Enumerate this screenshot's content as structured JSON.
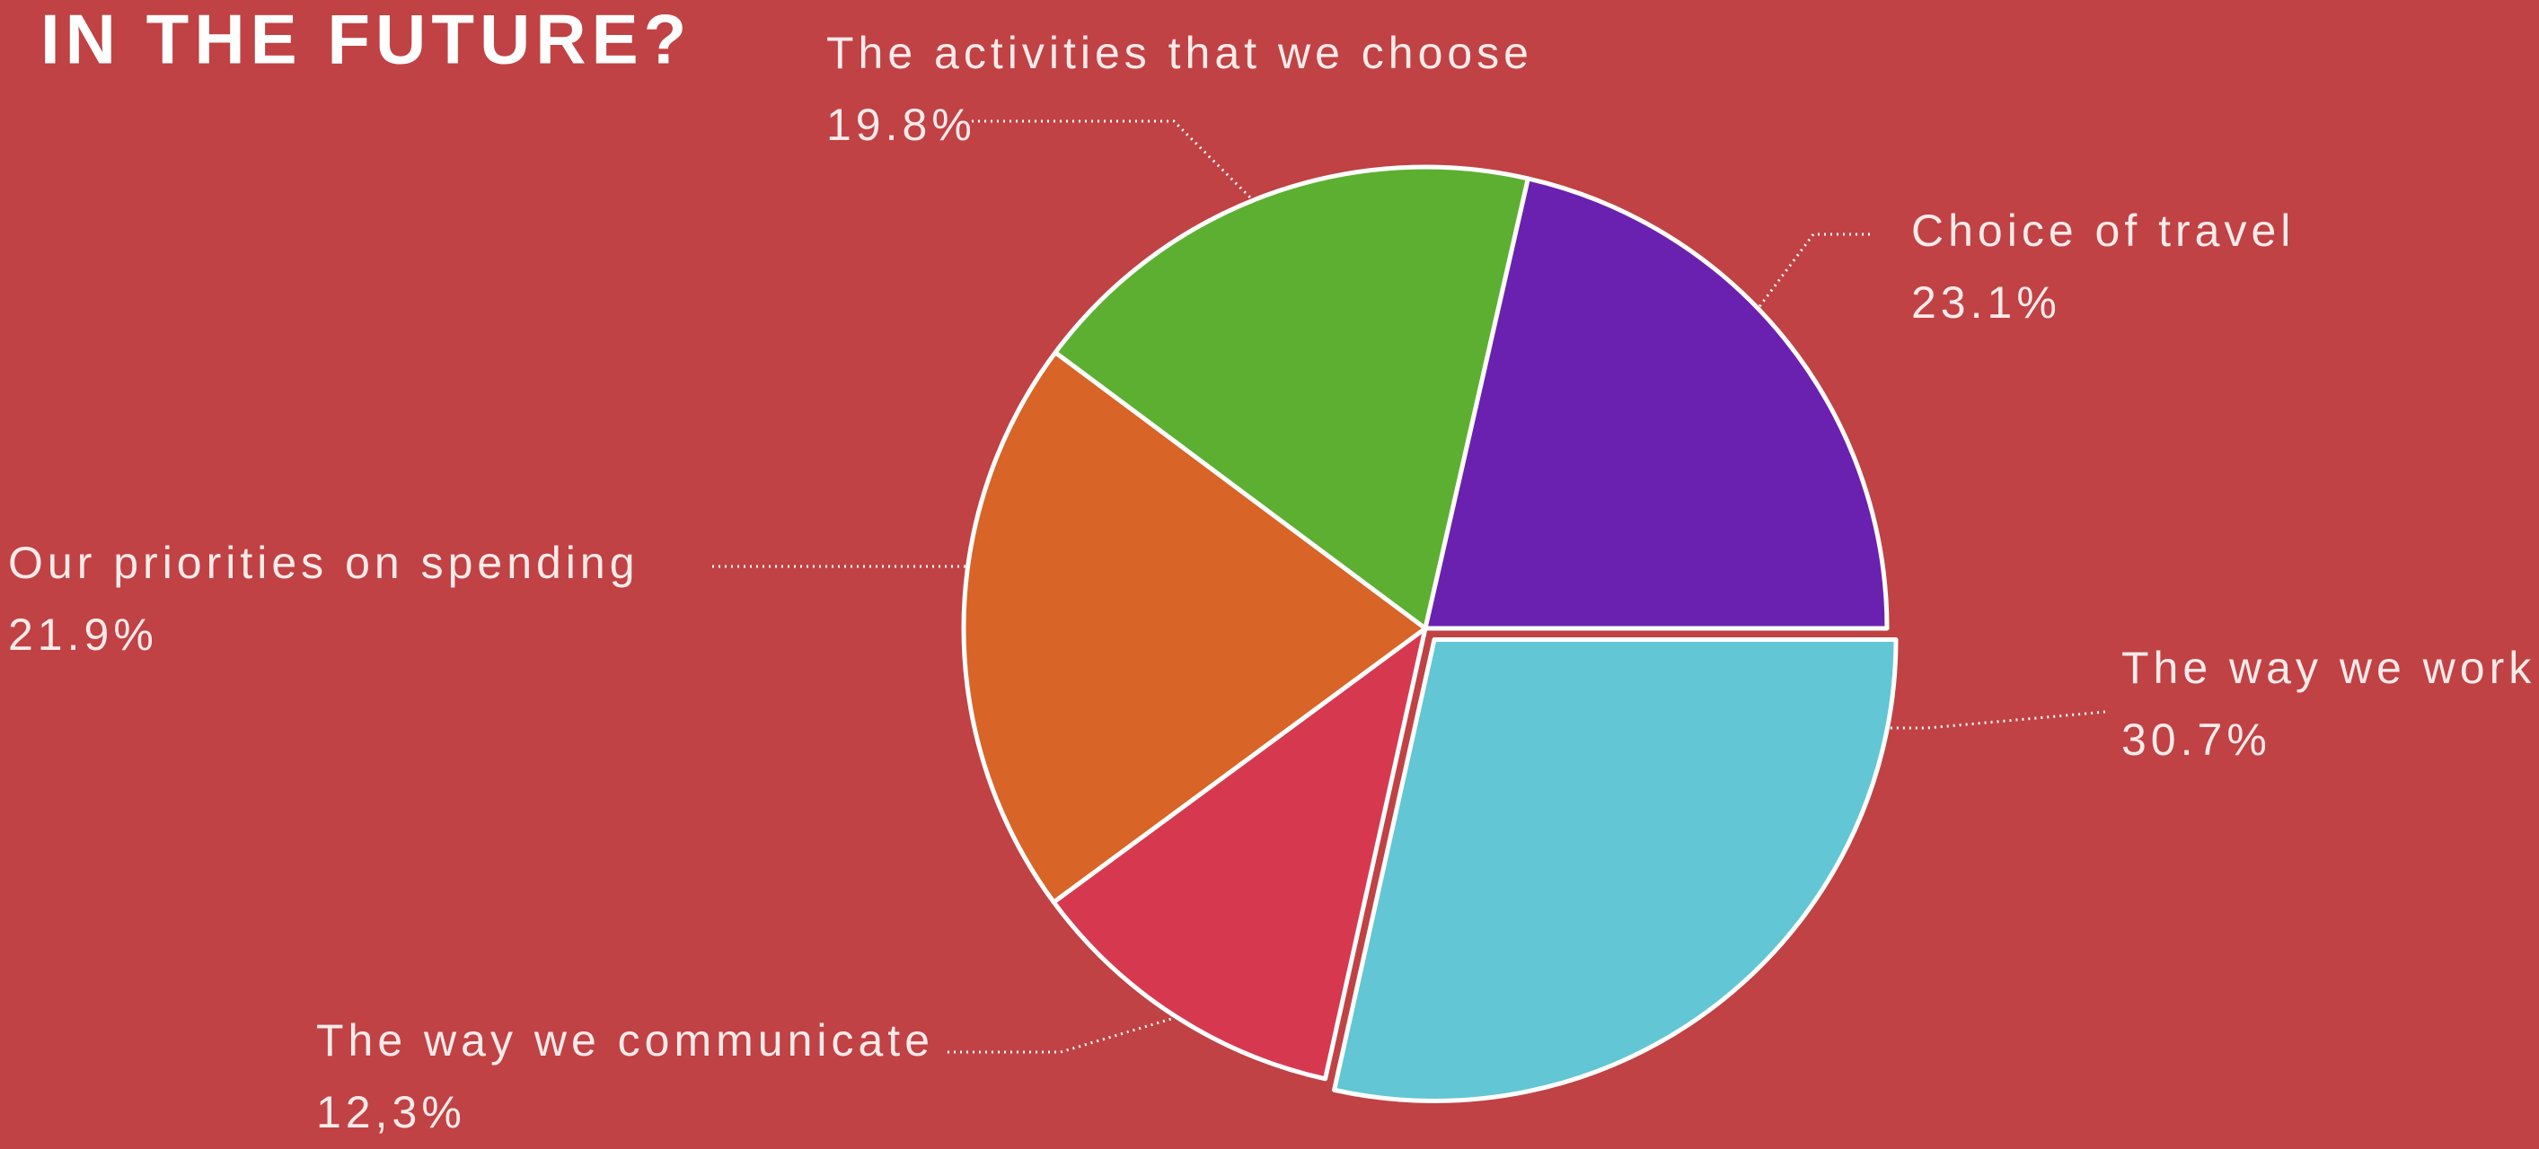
{
  "chart_data": {
    "type": "pie",
    "title": "IN THE FUTURE?",
    "categories": [
      "The way we work",
      "The way we communicate",
      "Our priorities on spending",
      "The activities that we choose",
      "Choice of travel"
    ],
    "values": [
      30.7,
      12.3,
      21.9,
      19.8,
      23.1
    ],
    "value_labels": [
      "30.7%",
      "12,3%",
      "21.9%",
      "19.8%",
      "23.1%"
    ],
    "colors": [
      "#62c6d4",
      "#d6394f",
      "#d86427",
      "#5daf31",
      "#6a21b0"
    ]
  }
}
